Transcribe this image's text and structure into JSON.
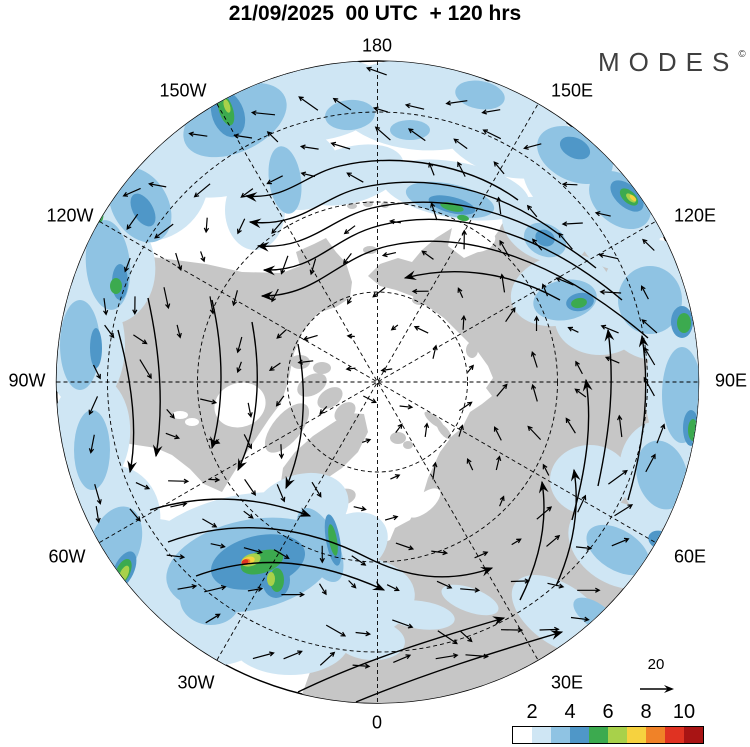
{
  "header": {
    "title": "21/09/2025  00 UTC  + 120 hrs",
    "logo_text": "MODES",
    "logo_symbol": "©"
  },
  "map": {
    "projection": "north-polar-stereographic",
    "lon_labels": [
      {
        "text": "180"
      },
      {
        "text": "150W"
      },
      {
        "text": "150E"
      },
      {
        "text": "120W"
      },
      {
        "text": "120E"
      },
      {
        "text": "90W"
      },
      {
        "text": "90E"
      },
      {
        "text": "60W"
      },
      {
        "text": "60E"
      },
      {
        "text": "30W"
      },
      {
        "text": "30E"
      },
      {
        "text": "0"
      }
    ],
    "land_color": "#c6c6c6",
    "ocean_color": "#ffffff"
  },
  "legend": {
    "colorbar": {
      "ticks": [
        "2",
        "4",
        "6",
        "8",
        "10"
      ],
      "colors": [
        "#ffffff",
        "#cfe6f4",
        "#8fc3e3",
        "#4f97c8",
        "#3caa4f",
        "#a8d14a",
        "#f6d23f",
        "#f08228",
        "#e03222",
        "#a81414"
      ]
    },
    "reference_arrow": {
      "label": "20"
    }
  }
}
